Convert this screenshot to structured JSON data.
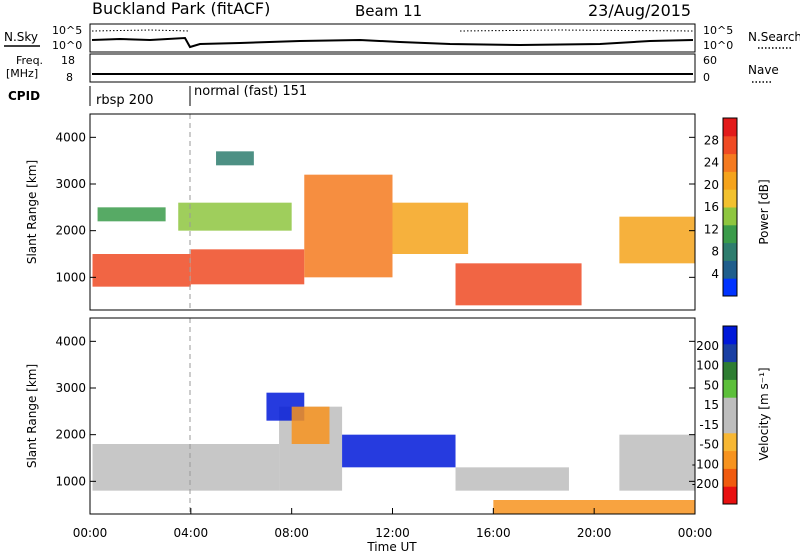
{
  "header": {
    "title": "Buckland Park (fitACF)",
    "beam": "Beam 11",
    "date": "23/Aug/2015"
  },
  "noise_panel": {
    "left_label": "N.Sky",
    "left_ticks": [
      "10^5",
      "10^0"
    ],
    "right_ticks": [
      "10^5",
      "10^0"
    ],
    "right_label": "N.Search"
  },
  "freq_panel": {
    "left_label_1": "Freq.",
    "left_label_2": "[MHz]",
    "left_ticks": [
      "18",
      "8"
    ],
    "right_ticks": [
      "60",
      "0"
    ],
    "right_label": "Nave"
  },
  "cpid_panel": {
    "label": "CPID",
    "mode_1": "rbsp 200",
    "mode_2": "normal (fast) 151"
  },
  "colors": {
    "power": [
      "#0033ff",
      "#1f5e8c",
      "#2e7d6e",
      "#3a9b4a",
      "#8ec63f",
      "#f2c12e",
      "#f5a31b",
      "#f57a1f",
      "#ef4a23",
      "#e21a1a"
    ],
    "velocity": [
      "#e81010",
      "#f05a0e",
      "#f7931e",
      "#f7b733",
      "#bdbdbd",
      "#bdbdbd",
      "#5cbf3a",
      "#2e7d32",
      "#1a3fa3",
      "#0019d9"
    ]
  },
  "chart_data": [
    {
      "type": "heatmap",
      "name": "power",
      "ylabel": "Slant Range [km]",
      "yticks": [
        "1000",
        "2000",
        "3000",
        "4000"
      ],
      "ylim": [
        300,
        4500
      ],
      "xlim": [
        0,
        24
      ],
      "colorbar_label": "Power [dB]",
      "colorbar_ticks": [
        "4",
        "8",
        "12",
        "16",
        "20",
        "24",
        "28"
      ],
      "colorbar_range": [
        0,
        30
      ],
      "bands": [
        {
          "t0": 0.1,
          "t1": 4.0,
          "r_lo": 800,
          "r_hi": 1500,
          "value": 26
        },
        {
          "t0": 4.0,
          "t1": 8.5,
          "r_lo": 850,
          "r_hi": 1600,
          "value": 24
        },
        {
          "t0": 8.5,
          "t1": 12.0,
          "r_lo": 1000,
          "r_hi": 3200,
          "value": 22
        },
        {
          "t0": 12.0,
          "t1": 15.0,
          "r_lo": 1500,
          "r_hi": 2600,
          "value": 18
        },
        {
          "t0": 14.5,
          "t1": 19.5,
          "r_lo": 400,
          "r_hi": 1300,
          "value": 24
        },
        {
          "t0": 3.5,
          "t1": 8.0,
          "r_lo": 2000,
          "r_hi": 2600,
          "value": 14
        },
        {
          "t0": 21.0,
          "t1": 24.0,
          "r_lo": 1300,
          "r_hi": 2300,
          "value": 20
        },
        {
          "t0": 0.3,
          "t1": 3.0,
          "r_lo": 2200,
          "r_hi": 2500,
          "value": 10
        },
        {
          "t0": 5.0,
          "t1": 6.5,
          "r_lo": 3400,
          "r_hi": 3700,
          "value": 8
        }
      ]
    },
    {
      "type": "heatmap",
      "name": "velocity",
      "ylabel": "Slant Range [km]",
      "yticks": [
        "1000",
        "2000",
        "3000",
        "4000"
      ],
      "ylim": [
        300,
        4500
      ],
      "xlim": [
        0,
        24
      ],
      "xlabel": "Time UT",
      "xticks": [
        "00:00",
        "04:00",
        "08:00",
        "12:00",
        "16:00",
        "20:00",
        "00:00"
      ],
      "colorbar_label": "Velocity [m s⁻¹]",
      "colorbar_ticks": [
        "-200",
        "-100",
        "-50",
        "-15",
        "15",
        "50",
        "100",
        "200"
      ],
      "bands": [
        {
          "t0": 0.1,
          "t1": 7.5,
          "r_lo": 800,
          "r_hi": 1800,
          "value": 0
        },
        {
          "t0": 7.5,
          "t1": 10.0,
          "r_lo": 800,
          "r_hi": 2600,
          "value": 0
        },
        {
          "t0": 10.0,
          "t1": 14.5,
          "r_lo": 1300,
          "r_hi": 2000,
          "value": 250
        },
        {
          "t0": 14.5,
          "t1": 19.0,
          "r_lo": 800,
          "r_hi": 1300,
          "value": 0
        },
        {
          "t0": 21.0,
          "t1": 24.0,
          "r_lo": 800,
          "r_hi": 2000,
          "value": 0
        },
        {
          "t0": 16.0,
          "t1": 24.0,
          "r_lo": 300,
          "r_hi": 600,
          "value": -60
        },
        {
          "t0": 7.0,
          "t1": 8.5,
          "r_lo": 2300,
          "r_hi": 2900,
          "value": 220
        },
        {
          "t0": 8.0,
          "t1": 9.5,
          "r_lo": 1800,
          "r_hi": 2600,
          "value": -60
        }
      ]
    }
  ]
}
